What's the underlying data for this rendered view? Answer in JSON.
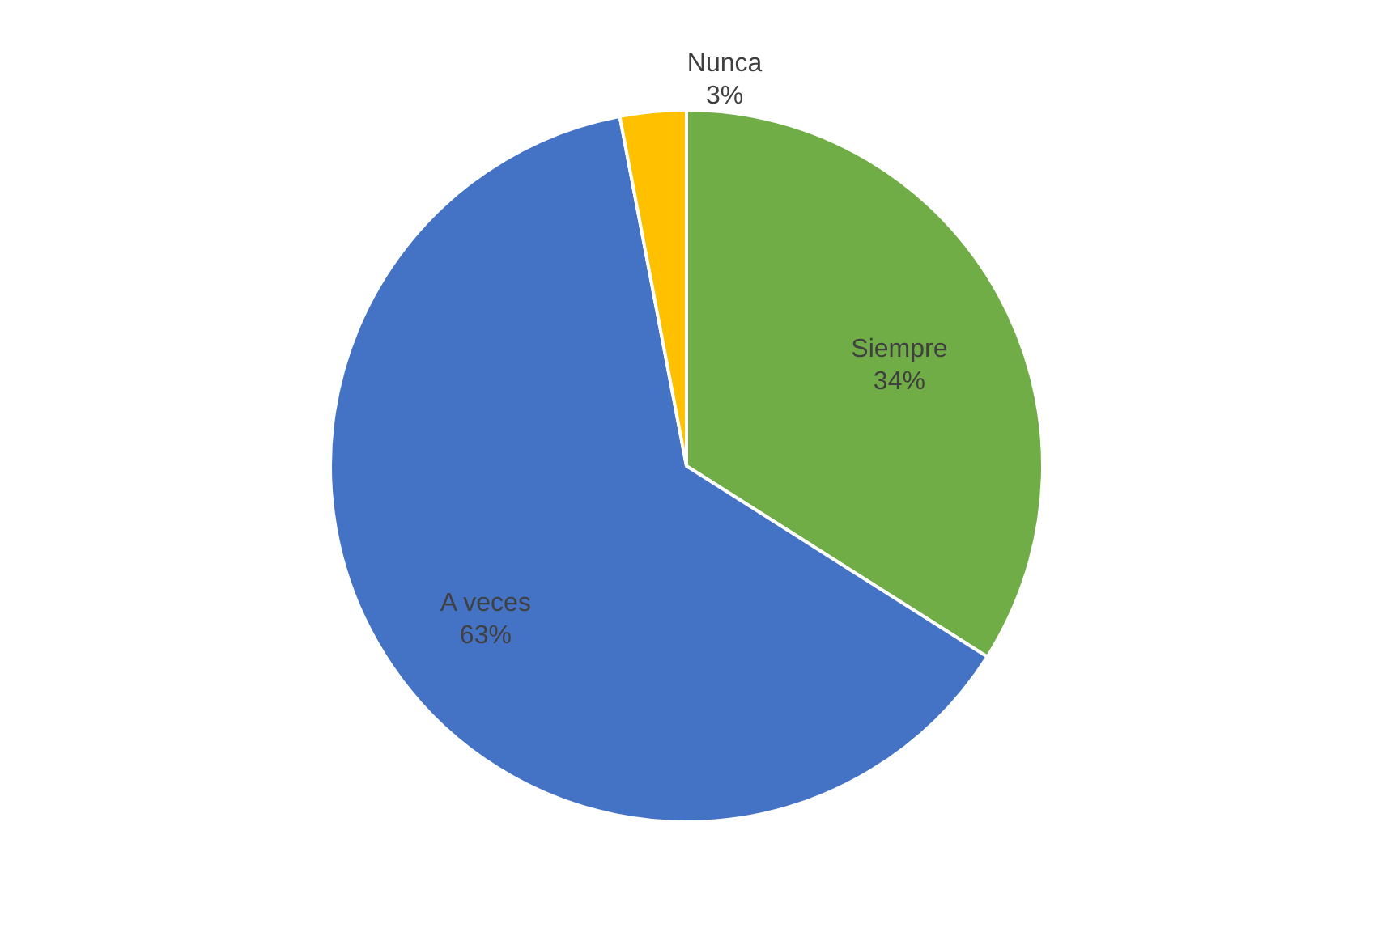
{
  "chart_data": {
    "type": "pie",
    "categories": [
      "Siempre",
      "A veces",
      "Nunca"
    ],
    "values": [
      34,
      63,
      3
    ],
    "value_labels": [
      "34%",
      "63%",
      "3%"
    ],
    "colors": [
      "#70ad47",
      "#4472c4",
      "#ffc000"
    ],
    "legend": false
  }
}
